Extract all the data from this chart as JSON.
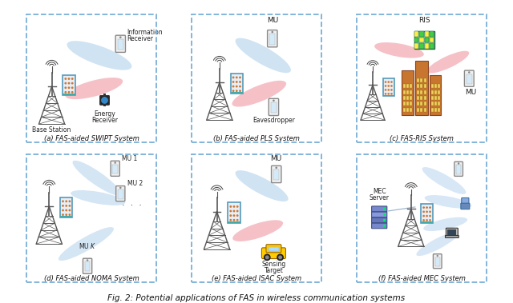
{
  "figure_caption": "Fig. 2: Potential applications of FAS in wireless communication systems",
  "background_color": "#ffffff",
  "panel_bg": "#ffffff",
  "border_dashed_color": "#7ab0d8",
  "beam_blue": "#b8d4ee",
  "beam_pink": "#f0a0aa",
  "panel_titles": [
    "(a) FAS-aided SWIPT System",
    "(b) FAS-aided PLS System",
    "(c) FAS-RIS System",
    "(d) FAS-aided NOMA System",
    "(e) FAS-aided ISAC System",
    "(f) FAS-aided MEC System"
  ],
  "figsize": [
    6.4,
    3.79
  ],
  "dpi": 100
}
